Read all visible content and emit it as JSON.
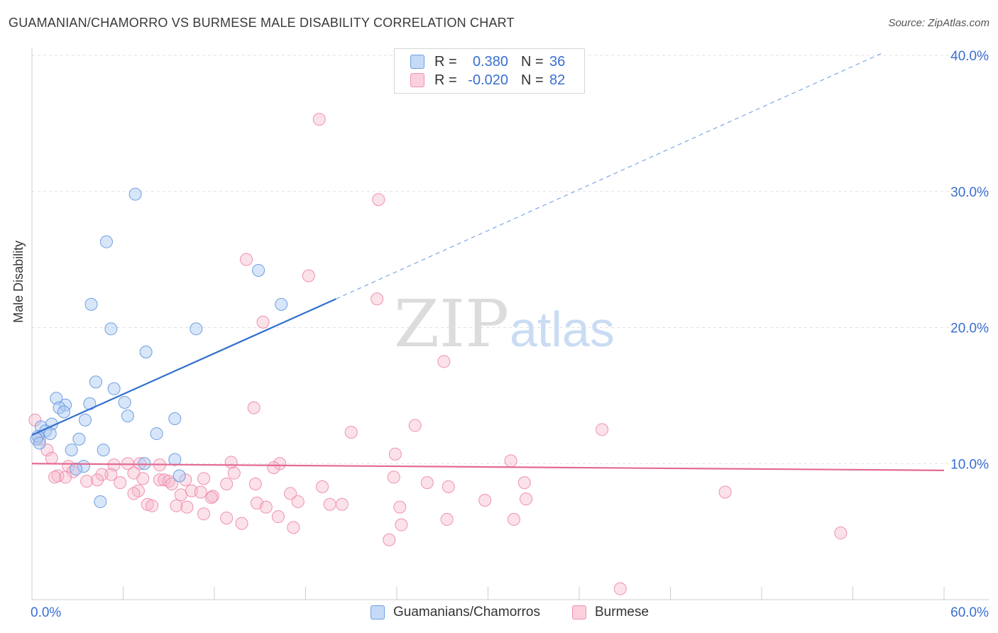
{
  "title": "GUAMANIAN/CHAMORRO VS BURMESE MALE DISABILITY CORRELATION CHART",
  "source": "Source: ZipAtlas.com",
  "watermark": {
    "zip": "ZIP",
    "atlas": "atlas"
  },
  "legend": {
    "series1": {
      "r_label": "R =",
      "r_value": "0.380",
      "n_label": "N =",
      "n_value": "36",
      "color": "#a9c8f2"
    },
    "series2": {
      "r_label": "R =",
      "r_value": "-0.020",
      "n_label": "N =",
      "n_value": "82",
      "color": "#f6b6c9"
    }
  },
  "bottom_legend": {
    "series1": "Guamanians/Chamorros",
    "series2": "Burmese"
  },
  "chart_data": {
    "type": "scatter",
    "title": "GUAMANIAN/CHAMORRO VS BURMESE MALE DISABILITY CORRELATION CHART",
    "xlabel": "",
    "ylabel": "Male Disability",
    "xlim": [
      0,
      60
    ],
    "ylim": [
      0,
      40
    ],
    "x_tick_labels": [
      "0.0%",
      "60.0%"
    ],
    "y_tick_labels": [
      "10.0%",
      "20.0%",
      "30.0%",
      "40.0%"
    ],
    "y_ticks": [
      10,
      20,
      30,
      40
    ],
    "series": [
      {
        "name": "Guamanians/Chamorros",
        "color": "#6f9fe0",
        "trend": {
          "x": [
            0,
            20
          ],
          "y": [
            12.1,
            22.1
          ],
          "dashed_extension_to": [
            56,
            40.2
          ],
          "color": "#2f6fcf"
        },
        "points": [
          [
            6.8,
            29.8
          ],
          [
            4.9,
            26.3
          ],
          [
            14.9,
            24.2
          ],
          [
            3.9,
            21.7
          ],
          [
            16.4,
            21.7
          ],
          [
            5.2,
            19.9
          ],
          [
            10.8,
            19.9
          ],
          [
            7.5,
            18.2
          ],
          [
            4.2,
            16.0
          ],
          [
            5.4,
            15.5
          ],
          [
            1.6,
            14.8
          ],
          [
            3.8,
            14.4
          ],
          [
            6.1,
            14.5
          ],
          [
            2.2,
            14.3
          ],
          [
            1.8,
            14.1
          ],
          [
            2.1,
            13.8
          ],
          [
            6.3,
            13.5
          ],
          [
            9.4,
            13.3
          ],
          [
            3.5,
            13.2
          ],
          [
            1.3,
            12.9
          ],
          [
            0.6,
            12.7
          ],
          [
            0.9,
            12.4
          ],
          [
            1.2,
            12.2
          ],
          [
            8.2,
            12.2
          ],
          [
            0.4,
            12.0
          ],
          [
            0.3,
            11.8
          ],
          [
            3.1,
            11.8
          ],
          [
            0.5,
            11.5
          ],
          [
            2.6,
            11.0
          ],
          [
            4.7,
            11.0
          ],
          [
            9.4,
            10.3
          ],
          [
            7.4,
            10.0
          ],
          [
            3.4,
            9.8
          ],
          [
            2.9,
            9.6
          ],
          [
            9.7,
            9.1
          ],
          [
            4.5,
            7.2
          ]
        ]
      },
      {
        "name": "Burmese",
        "color": "#f090b0",
        "trend": {
          "x": [
            0,
            60
          ],
          "y": [
            10.0,
            9.5
          ],
          "color": "#e46a94"
        },
        "points": [
          [
            18.9,
            35.3
          ],
          [
            22.8,
            29.4
          ],
          [
            14.1,
            25.0
          ],
          [
            18.2,
            23.8
          ],
          [
            22.7,
            22.1
          ],
          [
            15.2,
            20.4
          ],
          [
            27.1,
            17.5
          ],
          [
            14.6,
            14.1
          ],
          [
            0.2,
            13.2
          ],
          [
            25.2,
            12.8
          ],
          [
            37.5,
            12.5
          ],
          [
            21.0,
            12.3
          ],
          [
            0.5,
            11.8
          ],
          [
            1.0,
            11.0
          ],
          [
            1.3,
            10.4
          ],
          [
            23.9,
            10.7
          ],
          [
            31.5,
            10.2
          ],
          [
            6.3,
            10.0
          ],
          [
            7.1,
            10.0
          ],
          [
            13.1,
            10.1
          ],
          [
            16.3,
            10.0
          ],
          [
            2.4,
            9.8
          ],
          [
            5.4,
            9.9
          ],
          [
            8.4,
            9.9
          ],
          [
            2.7,
            9.4
          ],
          [
            15.9,
            9.7
          ],
          [
            5.2,
            9.2
          ],
          [
            13.3,
            9.3
          ],
          [
            1.7,
            9.1
          ],
          [
            2.2,
            9.0
          ],
          [
            4.6,
            9.2
          ],
          [
            6.7,
            9.3
          ],
          [
            1.5,
            9.0
          ],
          [
            23.8,
            9.0
          ],
          [
            4.3,
            8.8
          ],
          [
            7.3,
            8.9
          ],
          [
            8.4,
            8.8
          ],
          [
            8.7,
            8.8
          ],
          [
            9.0,
            8.7
          ],
          [
            10.1,
            8.8
          ],
          [
            11.3,
            8.9
          ],
          [
            12.8,
            8.5
          ],
          [
            14.7,
            8.5
          ],
          [
            3.6,
            8.7
          ],
          [
            5.8,
            8.6
          ],
          [
            9.2,
            8.5
          ],
          [
            19.1,
            8.3
          ],
          [
            26.0,
            8.6
          ],
          [
            27.4,
            8.3
          ],
          [
            32.4,
            8.6
          ],
          [
            7.0,
            8.0
          ],
          [
            10.5,
            8.0
          ],
          [
            11.1,
            7.9
          ],
          [
            6.7,
            7.8
          ],
          [
            17.0,
            7.8
          ],
          [
            9.8,
            7.7
          ],
          [
            11.9,
            7.6
          ],
          [
            11.8,
            7.5
          ],
          [
            14.8,
            7.1
          ],
          [
            17.5,
            7.2
          ],
          [
            19.6,
            7.0
          ],
          [
            20.4,
            7.0
          ],
          [
            29.8,
            7.3
          ],
          [
            32.5,
            7.4
          ],
          [
            7.6,
            7.0
          ],
          [
            7.9,
            6.9
          ],
          [
            9.5,
            6.9
          ],
          [
            15.4,
            6.8
          ],
          [
            24.2,
            6.8
          ],
          [
            45.6,
            7.9
          ],
          [
            10.2,
            6.8
          ],
          [
            11.3,
            6.3
          ],
          [
            12.8,
            6.0
          ],
          [
            16.2,
            6.1
          ],
          [
            13.8,
            5.6
          ],
          [
            27.3,
            5.9
          ],
          [
            31.7,
            5.9
          ],
          [
            17.2,
            5.3
          ],
          [
            24.3,
            5.5
          ],
          [
            23.5,
            4.4
          ],
          [
            53.2,
            4.9
          ],
          [
            38.7,
            0.8
          ]
        ]
      }
    ]
  }
}
